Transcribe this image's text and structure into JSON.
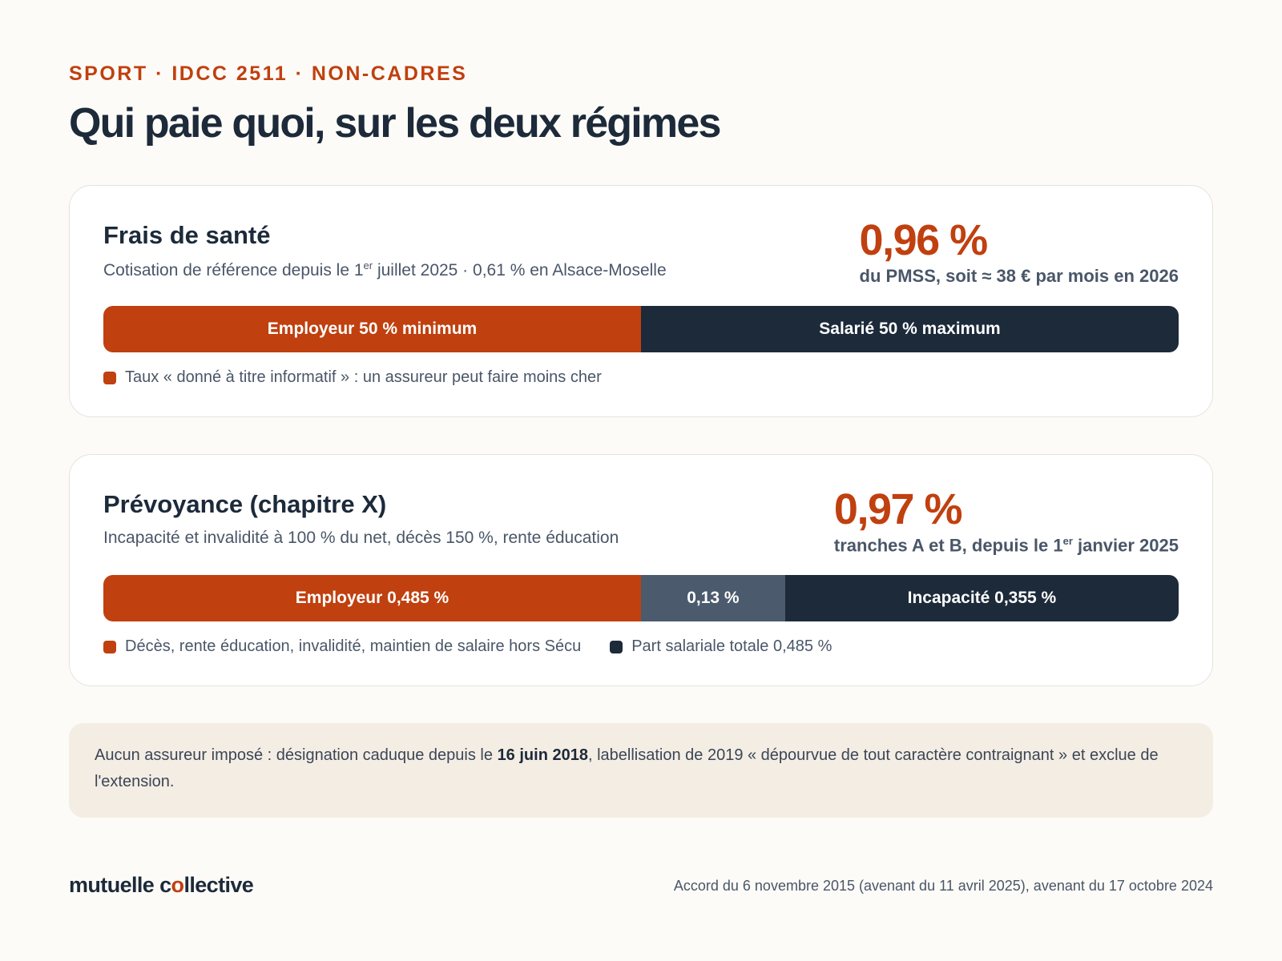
{
  "kicker": "SPORT · IDCC 2511 · NON-CADRES",
  "title": "Qui paie quoi, sur les deux régimes",
  "sante": {
    "heading": "Frais de santé",
    "subtitle_pre": "Cotisation de référence depuis le 1",
    "subtitle_sup": "er",
    "subtitle_post": " juillet 2025 · 0,61 % en Alsace-Moselle",
    "rate": "0,96 %",
    "rate_note": "du PMSS, soit ≈ 38 € par mois en 2026",
    "bar": [
      {
        "label": "Employeur 50 % minimum",
        "share": 50,
        "color": "#c0400f"
      },
      {
        "label": "Salarié 50 % maximum",
        "share": 50,
        "color": "#1c2a3a"
      }
    ],
    "legend": [
      {
        "label": "Taux « donné à titre informatif » : un assureur peut faire moins cher",
        "color": "#c0400f"
      }
    ]
  },
  "prevoyance": {
    "heading": "Prévoyance (chapitre X)",
    "subtitle": "Incapacité et invalidité à 100 % du net, décès 150 %, rente éducation",
    "rate": "0,97 %",
    "rate_note_pre": "tranches A et B, depuis le 1",
    "rate_note_sup": "er",
    "rate_note_post": " janvier 2025",
    "bar": [
      {
        "label": "Employeur 0,485 %",
        "share": 0.485,
        "color": "#c0400f"
      },
      {
        "label": "0,13 %",
        "share": 0.13,
        "color": "#4b5a6c"
      },
      {
        "label": "Incapacité 0,355 %",
        "share": 0.355,
        "color": "#1c2a3a"
      }
    ],
    "legend": [
      {
        "label": "Décès, rente éducation, invalidité, maintien de salaire hors Sécu",
        "color": "#c0400f"
      },
      {
        "label": "Part salariale totale 0,485 %",
        "color": "#1c2a3a"
      }
    ]
  },
  "note": {
    "pre": "Aucun assureur imposé : désignation caduque depuis le ",
    "bold": "16 juin 2018",
    "post": ", labellisation de 2019 « dépourvue de tout caractère contraignant » et exclue de l'extension."
  },
  "brand": {
    "part1": "mutuelle c",
    "mark": "o",
    "part2": "llective"
  },
  "footer_ref": "Accord du 6 novembre 2015 (avenant du 11 avril 2025), avenant du 17 octobre 2024"
}
